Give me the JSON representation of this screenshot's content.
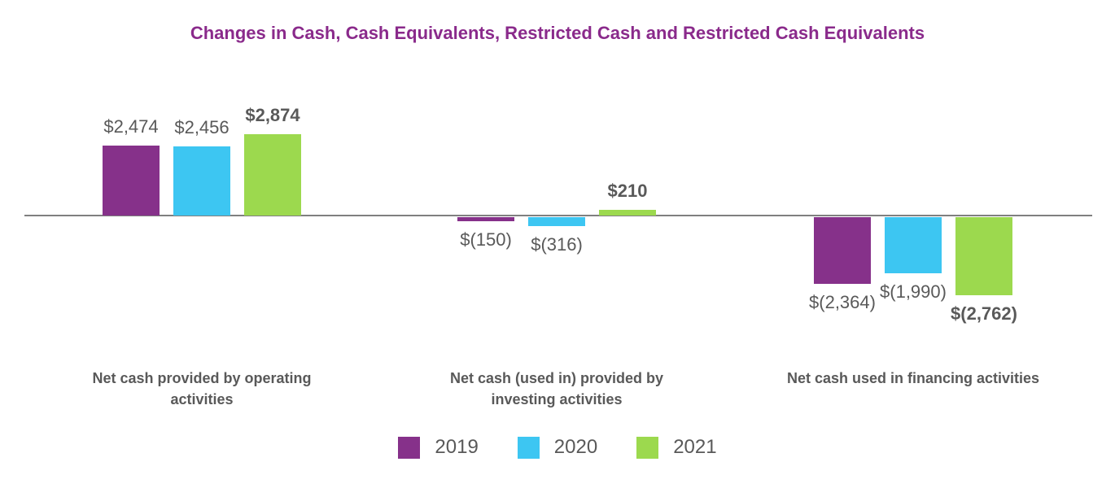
{
  "title": "Changes in Cash, Cash Equivalents, Restricted Cash and Restricted Cash Equivalents",
  "colors": {
    "title_text": "#8A2A8B",
    "value_label_text": "#595959",
    "category_label_text": "#595959",
    "legend_text": "#595959",
    "axis_line": "#808080",
    "background": "#FFFFFF",
    "series_2019": "#86318A",
    "series_2020": "#3DC6F2",
    "series_2021": "#9CD94E"
  },
  "legend": {
    "items": [
      {
        "label": "2019",
        "color": "#86318A"
      },
      {
        "label": "2020",
        "color": "#3DC6F2"
      },
      {
        "label": "2021",
        "color": "#9CD94E"
      }
    ]
  },
  "chart_data": {
    "type": "bar",
    "title": "Changes in Cash, Cash Equivalents, Restricted Cash and Restricted Cash Equivalents",
    "categories": [
      "Net cash provided by operating\nactivities",
      "Net cash (used in) provided by\ninvesting activities",
      "Net cash used in financing activities"
    ],
    "series": [
      {
        "name": "2019",
        "color": "#86318A",
        "values": [
          2474,
          -150,
          -2364
        ],
        "data_labels": [
          "$2,474",
          "$(150)",
          "$(2,364)"
        ],
        "bold_labels": false
      },
      {
        "name": "2020",
        "color": "#3DC6F2",
        "values": [
          2456,
          -316,
          -1990
        ],
        "data_labels": [
          "$2,456",
          "$(316)",
          "$(1,990)"
        ],
        "bold_labels": false
      },
      {
        "name": "2021",
        "color": "#9CD94E",
        "values": [
          2874,
          210,
          -2762
        ],
        "data_labels": [
          "$2,874",
          "$210",
          "$(2,762)"
        ],
        "bold_labels": true
      }
    ],
    "baseline": 0,
    "ylim": [
      -3000,
      3000
    ],
    "grid": false,
    "legend_position": "bottom",
    "xlabel": "",
    "ylabel": ""
  }
}
